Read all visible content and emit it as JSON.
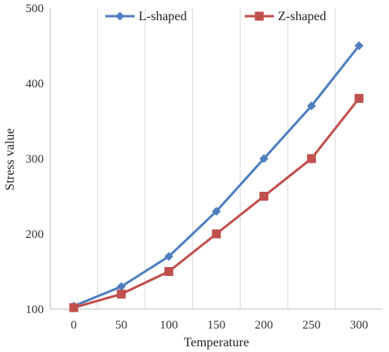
{
  "chart_data": {
    "type": "line",
    "xlabel": "Temperature",
    "ylabel": "Stress value",
    "x": [
      0,
      50,
      100,
      150,
      200,
      250,
      300
    ],
    "x_tick_labels": [
      "0",
      "50",
      "100",
      "150",
      "200",
      "250",
      "300"
    ],
    "ylim": [
      100,
      500
    ],
    "y_ticks": [
      100,
      200,
      300,
      400,
      500
    ],
    "grid": "vertical",
    "legend_position": "top",
    "series": [
      {
        "name": "L-shaped",
        "marker": "diamond",
        "color": "#4f7fbf",
        "values": [
          104,
          130,
          170,
          230,
          300,
          370,
          450
        ]
      },
      {
        "name": "Z-shaped",
        "marker": "square",
        "color": "#c0504d",
        "values": [
          102,
          120,
          150,
          200,
          250,
          300,
          380
        ]
      }
    ]
  }
}
